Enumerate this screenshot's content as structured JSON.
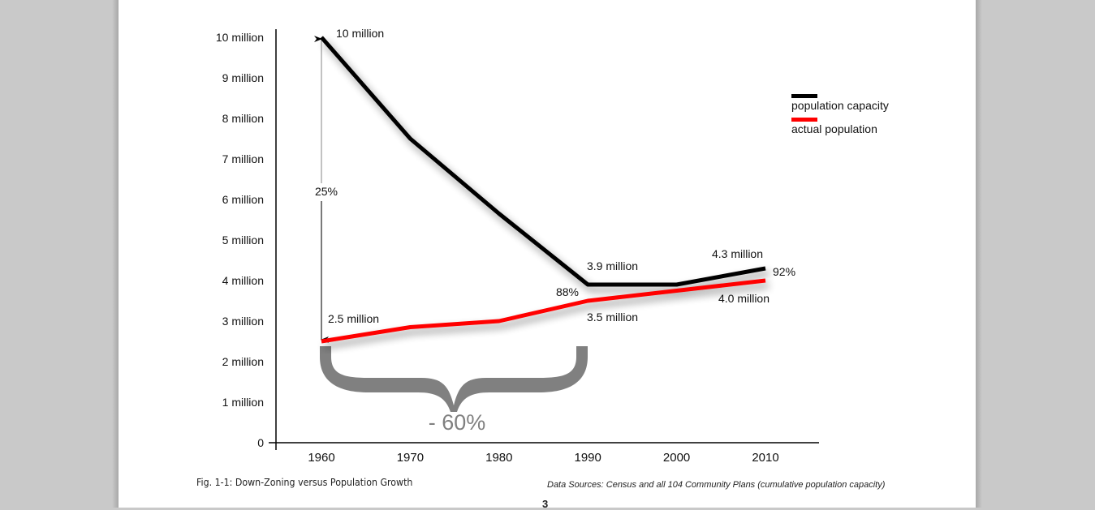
{
  "chart_data": {
    "type": "line",
    "title": "",
    "xlabel": "",
    "ylabel": "",
    "x": [
      1960,
      1970,
      1980,
      1990,
      2000,
      2010
    ],
    "x_tick_labels": [
      "1960",
      "1970",
      "1980",
      "1990",
      "2000",
      "2010"
    ],
    "y_tick_values": [
      0,
      1,
      2,
      3,
      4,
      5,
      6,
      7,
      8,
      9,
      10
    ],
    "y_tick_labels": [
      "0",
      "1 million",
      "2 million",
      "3 million",
      "4 million",
      "5 million",
      "6 million",
      "7 million",
      "8 million",
      "9 million",
      "10 million"
    ],
    "y_units": "millions",
    "ylim": [
      0,
      10
    ],
    "grid": false,
    "legend_position": "top-right",
    "series": [
      {
        "name": "population capacity",
        "color": "#000000",
        "values": [
          10.0,
          7.5,
          5.65,
          3.9,
          3.9,
          4.3
        ]
      },
      {
        "name": "actual population",
        "color": "#ff0000",
        "values": [
          2.5,
          2.85,
          3.0,
          3.5,
          3.75,
          4.0
        ]
      }
    ],
    "annotations": [
      {
        "id": "cap1960",
        "text": "10 million"
      },
      {
        "id": "pop1960",
        "text": "2.5 million"
      },
      {
        "id": "pct1960",
        "text": "25%"
      },
      {
        "id": "cap1990",
        "text": "3.9 million"
      },
      {
        "id": "pop1990",
        "text": "3.5 million"
      },
      {
        "id": "pct1990",
        "text": "88%"
      },
      {
        "id": "cap2010",
        "text": "4.3 million"
      },
      {
        "id": "pop2010",
        "text": "4.0 million"
      },
      {
        "id": "pct2010",
        "text": "92%"
      },
      {
        "id": "brace",
        "text": "- 60%"
      }
    ],
    "brace_color": "#808080"
  },
  "figure": {
    "caption": "Fig. 1-1: Down-Zoning versus Population Growth",
    "source": "Data Sources: Census and all 104 Community Plans (cumulative population capacity)",
    "page_number": "3"
  }
}
